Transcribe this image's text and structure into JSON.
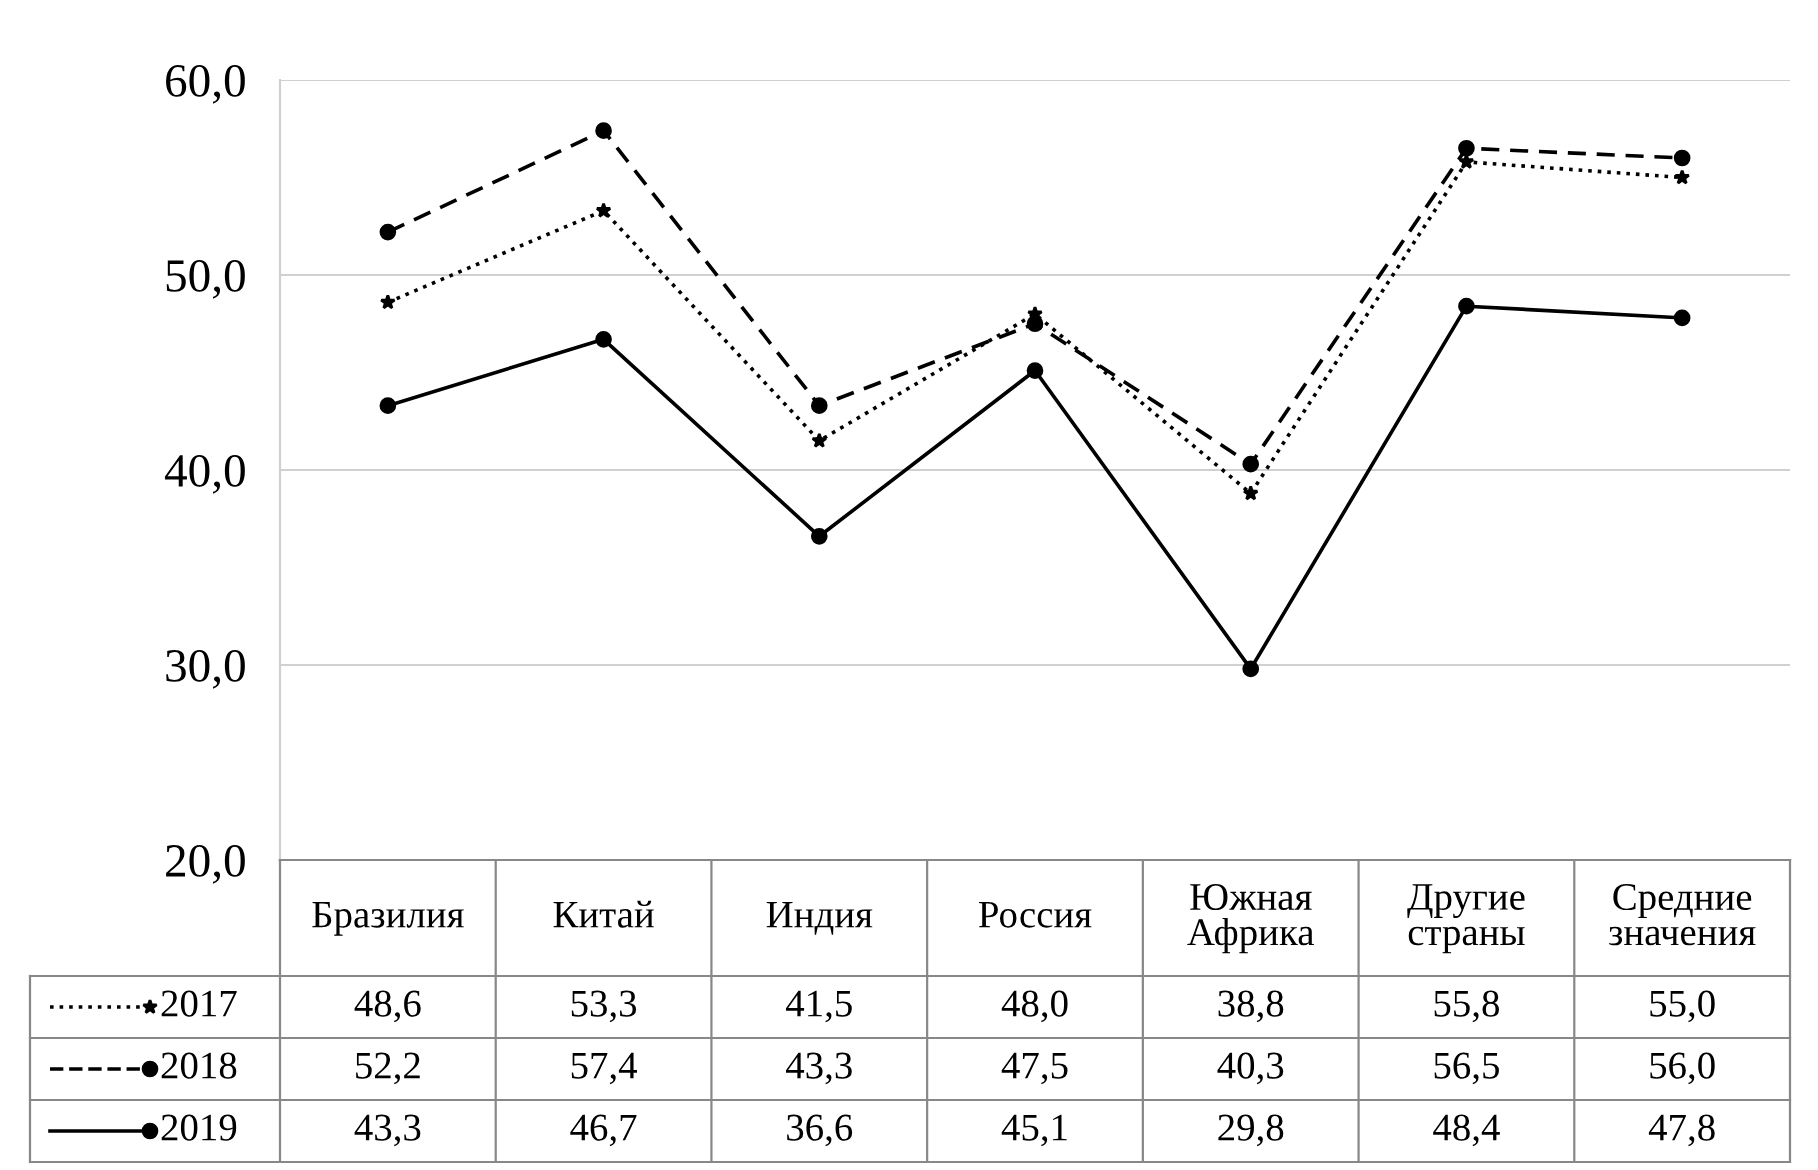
{
  "chart_data": {
    "type": "line",
    "categories": [
      "Бразилия",
      "Китай",
      "Индия",
      "Россия",
      "Южная Африка",
      "Другие страны",
      "Средние значения"
    ],
    "series": [
      {
        "name": "2017",
        "color": "#000000",
        "marker": "star",
        "line_style": "dotted",
        "values": [
          48.6,
          53.3,
          41.5,
          48.0,
          38.8,
          55.8,
          55.0
        ],
        "value_labels": [
          "48,6",
          "53,3",
          "41,5",
          "48,0",
          "38,8",
          "55,8",
          "55,0"
        ]
      },
      {
        "name": "2018",
        "color": "#000000",
        "marker": "circle",
        "line_style": "dashed",
        "values": [
          52.2,
          57.4,
          43.3,
          47.5,
          40.3,
          56.5,
          56.0
        ],
        "value_labels": [
          "52,2",
          "57,4",
          "43,3",
          "47,5",
          "40,3",
          "56,5",
          "56,0"
        ]
      },
      {
        "name": "2019",
        "color": "#000000",
        "marker": "circle",
        "line_style": "solid",
        "values": [
          43.3,
          46.7,
          36.6,
          45.1,
          29.8,
          48.4,
          47.8
        ],
        "value_labels": [
          "43,3",
          "46,7",
          "36,6",
          "45,1",
          "29,8",
          "48,4",
          "47,8"
        ]
      }
    ],
    "ylim": [
      20,
      60
    ],
    "yticks": [
      {
        "value": 20,
        "label": "20,0"
      },
      {
        "value": 30,
        "label": "30,0"
      },
      {
        "value": 40,
        "label": "40,0"
      },
      {
        "value": 50,
        "label": "50,0"
      },
      {
        "value": 60,
        "label": "60,0"
      }
    ],
    "grid": "y",
    "legend": "bottom left"
  }
}
